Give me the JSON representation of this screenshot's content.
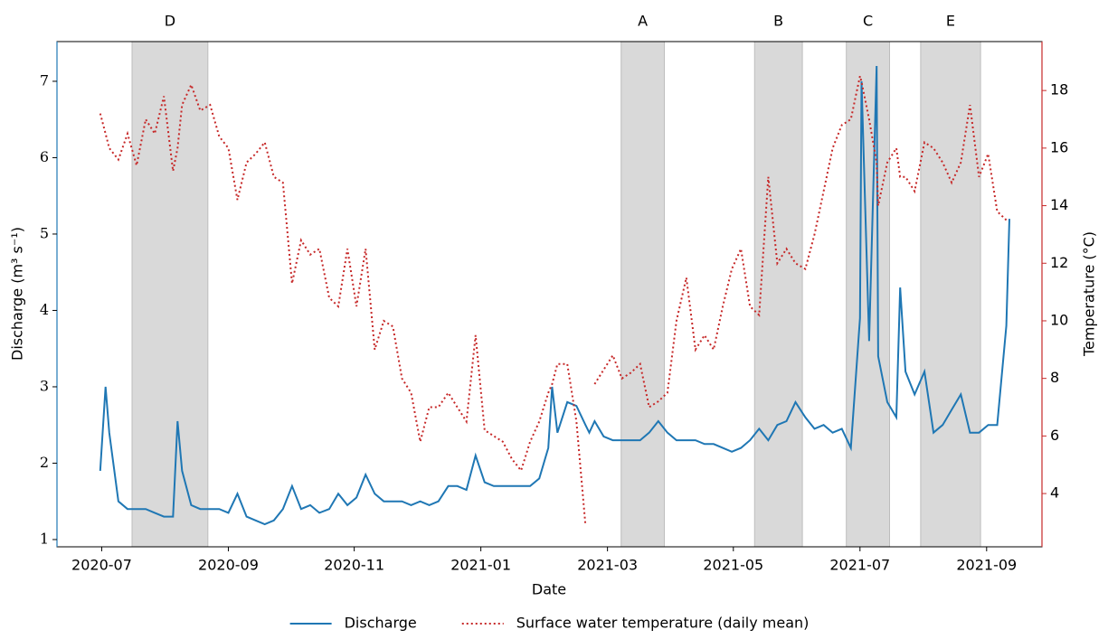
{
  "chart_data": {
    "type": "line",
    "x_label": "Date",
    "y_label": "Discharge (m³ s⁻¹)",
    "y2_label": "Temperature (°C)",
    "xlim": [
      2020.441,
      2021.74
    ],
    "xticks": [
      {
        "value": 2020.5,
        "label": "2020-07"
      },
      {
        "value": 2020.667,
        "label": "2020-09"
      },
      {
        "value": 2020.833,
        "label": "2020-11"
      },
      {
        "value": 2021.0,
        "label": "2021-01"
      },
      {
        "value": 2021.167,
        "label": "2021-03"
      },
      {
        "value": 2021.333,
        "label": "2021-05"
      },
      {
        "value": 2021.5,
        "label": "2021-07"
      },
      {
        "value": 2021.667,
        "label": "2021-09"
      }
    ],
    "ylim": [
      0.905,
      7.52
    ],
    "yticks": [
      1,
      2,
      3,
      4,
      5,
      6,
      7
    ],
    "y2lim": [
      2.15,
      19.7
    ],
    "y2ticks": [
      4,
      6,
      8,
      10,
      12,
      14,
      16,
      18
    ],
    "legend": "bottom-center",
    "shaded_regions": [
      {
        "label": "D",
        "start": 2020.54,
        "end": 2020.64
      },
      {
        "label": "A",
        "start": 2021.185,
        "end": 2021.242
      },
      {
        "label": "B",
        "start": 2021.361,
        "end": 2021.424
      },
      {
        "label": "C",
        "start": 2021.482,
        "end": 2021.539
      },
      {
        "label": "E",
        "start": 2021.58,
        "end": 2021.659
      }
    ],
    "x": [
      2020.498,
      2020.505,
      2020.51,
      2020.522,
      2020.534,
      2020.546,
      2020.558,
      2020.57,
      2020.582,
      2020.594,
      2020.6,
      2020.606,
      2020.618,
      2020.63,
      2020.643,
      2020.655,
      2020.667,
      2020.679,
      2020.691,
      2020.703,
      2020.715,
      2020.727,
      2020.739,
      2020.751,
      2020.763,
      2020.775,
      2020.787,
      2020.8,
      2020.812,
      2020.824,
      2020.836,
      2020.848,
      2020.86,
      2020.872,
      2020.884,
      2020.896,
      2020.908,
      2020.92,
      2020.932,
      2020.944,
      2020.957,
      2020.969,
      2020.981,
      2020.993,
      2021.005,
      2021.017,
      2021.029,
      2021.041,
      2021.053,
      2021.065,
      2021.077,
      2021.089,
      2021.094,
      2021.101,
      2021.114,
      2021.126,
      2021.138,
      2021.143,
      2021.15,
      2021.162,
      2021.174,
      2021.186,
      2021.198,
      2021.21,
      2021.222,
      2021.234,
      2021.246,
      2021.258,
      2021.271,
      2021.283,
      2021.295,
      2021.307,
      2021.319,
      2021.331,
      2021.343,
      2021.355,
      2021.367,
      2021.379,
      2021.391,
      2021.403,
      2021.415,
      2021.428,
      2021.44,
      2021.452,
      2021.464,
      2021.476,
      2021.488,
      2021.5,
      2021.502,
      2021.512,
      2021.522,
      2021.524,
      2021.536,
      2021.548,
      2021.553,
      2021.56,
      2021.572,
      2021.585,
      2021.597,
      2021.609,
      2021.621,
      2021.633,
      2021.645,
      2021.657,
      2021.669,
      2021.681,
      2021.693,
      2021.697
    ],
    "series": [
      {
        "name": "Discharge",
        "color": "#1f77b4",
        "style": "solid",
        "axis": "y",
        "values": [
          1.9,
          3.0,
          2.4,
          1.5,
          1.4,
          1.4,
          1.4,
          1.35,
          1.3,
          1.3,
          2.55,
          1.9,
          1.45,
          1.4,
          1.4,
          1.4,
          1.35,
          1.6,
          1.3,
          1.25,
          1.2,
          1.25,
          1.4,
          1.7,
          1.4,
          1.45,
          1.35,
          1.4,
          1.6,
          1.45,
          1.55,
          1.85,
          1.6,
          1.5,
          1.5,
          1.5,
          1.45,
          1.5,
          1.45,
          1.5,
          1.7,
          1.7,
          1.65,
          2.1,
          1.75,
          1.7,
          1.7,
          1.7,
          1.7,
          1.7,
          1.8,
          2.2,
          3.0,
          2.4,
          2.8,
          2.75,
          2.5,
          2.4,
          2.55,
          2.35,
          2.3,
          2.3,
          2.3,
          2.3,
          2.4,
          2.55,
          2.4,
          2.3,
          2.3,
          2.3,
          2.25,
          2.25,
          2.2,
          2.15,
          2.2,
          2.3,
          2.45,
          2.3,
          2.5,
          2.55,
          2.8,
          2.6,
          2.45,
          2.5,
          2.4,
          2.45,
          2.2,
          3.9,
          7.0,
          3.6,
          7.2,
          3.4,
          2.8,
          2.6,
          4.3,
          3.2,
          2.9,
          3.2,
          2.4,
          2.5,
          2.7,
          2.9,
          2.4,
          2.4,
          2.5,
          2.5,
          3.8,
          5.2
        ]
      },
      {
        "name": "Surface water temperature (daily mean)",
        "color": "#c62828",
        "style": "dotted",
        "axis": "y2",
        "values": [
          17.2,
          16.5,
          16.0,
          15.6,
          16.5,
          15.4,
          17.0,
          16.5,
          17.8,
          15.2,
          16.0,
          17.5,
          18.2,
          17.3,
          17.5,
          16.4,
          16.0,
          14.2,
          15.5,
          15.8,
          16.2,
          15.0,
          14.8,
          11.3,
          12.8,
          12.3,
          12.5,
          10.8,
          10.5,
          12.5,
          10.5,
          12.5,
          9.0,
          10.0,
          9.8,
          8.0,
          7.5,
          5.8,
          7.0,
          7.0,
          7.5,
          7.0,
          6.5,
          9.5,
          6.2,
          6.0,
          5.8,
          5.2,
          4.8,
          5.8,
          6.5,
          7.5,
          7.8,
          8.5,
          8.5,
          6.5,
          2.9,
          null,
          7.8,
          8.3,
          8.8,
          8.0,
          8.2,
          8.5,
          7.0,
          7.2,
          7.5,
          10.0,
          11.5,
          9.0,
          9.5,
          9.0,
          10.5,
          11.8,
          12.5,
          10.5,
          10.2,
          15.0,
          12.0,
          12.5,
          12.0,
          11.8,
          13.0,
          14.5,
          16.0,
          16.8,
          17.0,
          18.5,
          18.3,
          17.0,
          15.5,
          14.0,
          15.5,
          16.0,
          15.0,
          15.0,
          14.5,
          16.2,
          16.0,
          15.5,
          14.8,
          15.5,
          17.5,
          15.0,
          15.8,
          13.8,
          13.5,
          null
        ]
      }
    ]
  }
}
